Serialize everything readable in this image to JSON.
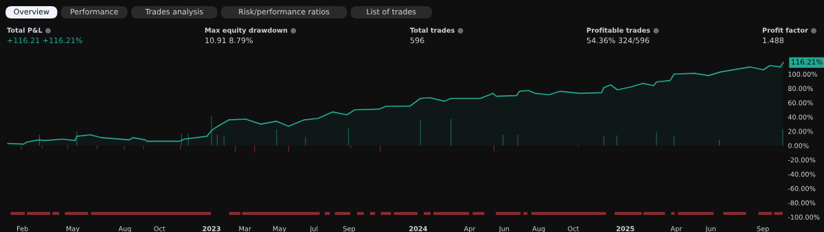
{
  "chart_data": [
    {
      "type": "other",
      "annotations": [
        "Overview",
        "Performance",
        "Trades analysis",
        "Risk/performance ratios",
        "List of trades",
        "Total P&L",
        "+116.21 +116.21%",
        "Max equity drawdown",
        "10.91 8.79%",
        "Total trades",
        "596",
        "Profitable trades",
        "54.36% 324/596",
        "Profit factor",
        "1.488"
      ]
    },
    {
      "type": "area",
      "series": [
        {
          "type": "area",
          "color": "#22ab94",
          "x": [
            "2022-01-06",
            "2022-02-03",
            "2022-02-09",
            "2022-03-02",
            "2022-03-12",
            "2022-04-13",
            "2022-05-05",
            "2022-05-08",
            "2022-06-01",
            "2022-06-21",
            "2022-08-09",
            "2022-08-15",
            "2022-09-06",
            "2022-09-09",
            "2022-11-05",
            "2022-11-14",
            "2022-12-24",
            "2023-01-01",
            "2023-01-08",
            "2023-02-01",
            "2023-03-02",
            "2023-03-29",
            "2023-04-26",
            "2023-05-17",
            "2023-06-14",
            "2023-07-08",
            "2023-08-03",
            "2023-08-28",
            "2023-09-11",
            "2023-10-24",
            "2023-11-05",
            "2023-12-17",
            "2024-01-05",
            "2024-01-22",
            "2024-02-16",
            "2024-02-28",
            "2024-04-20",
            "2024-05-12",
            "2024-05-18",
            "2024-06-23",
            "2024-06-28",
            "2024-07-14",
            "2024-07-26",
            "2024-08-19",
            "2024-09-08",
            "2024-10-12",
            "2024-11-20",
            "2024-11-24",
            "2024-12-06",
            "2024-12-18",
            "2025-01-11",
            "2025-02-01",
            "2025-02-20",
            "2025-02-25",
            "2025-03-21",
            "2025-03-28",
            "2025-05-04",
            "2025-05-28",
            "2025-06-18",
            "2025-08-09",
            "2025-09-02",
            "2025-09-13",
            "2025-10-02",
            "2025-10-07"
          ],
          "values": [
            3,
            2,
            5,
            8,
            7,
            9,
            7,
            13,
            15,
            11,
            8,
            11,
            8,
            6,
            6,
            9,
            13,
            21,
            25,
            36,
            37,
            30,
            34,
            27,
            36,
            38,
            47,
            43,
            50,
            51,
            55,
            55,
            66,
            67,
            62,
            66,
            66,
            73,
            69,
            70,
            76,
            77,
            73,
            71,
            76,
            73,
            74,
            81,
            85,
            78,
            82,
            87,
            84,
            89,
            91,
            100,
            101,
            98,
            103,
            110,
            106,
            112,
            110,
            116.21
          ]
        },
        {
          "type": "bar",
          "colors": [
            "#8c2a33",
            "#1f6f63",
            "#8c2a33",
            "#8c2a33",
            "#1f6f63",
            "#8c2a33",
            "#8c2a33",
            "#8c2a33",
            "#8c2a33",
            "#1f6f63",
            "#1f6f63",
            "#1f6f63",
            "#1f6f63",
            "#1f6f63",
            "#8c2a33",
            "#8c2a33",
            "#1f6f63",
            "#8c2a33",
            "#1f6f63",
            "#1f6f63",
            "#8c2a33",
            "#8c2a33",
            "#1f6f63",
            "#1f6f63",
            "#8c2a33",
            "#1f6f63",
            "#1f6f63",
            "#8c2a33",
            "#1f6f63",
            "#1f6f63",
            "#1f6f63",
            "#1f6f63",
            "#1f6f63",
            "#1f6f63"
          ],
          "x": [
            "2022-01-30",
            "2022-03-03",
            "2022-03-08",
            "2022-04-22",
            "2022-05-08",
            "2022-06-13",
            "2022-07-31",
            "2022-09-03",
            "2022-11-07",
            "2022-11-09",
            "2022-11-21",
            "2023-01-01",
            "2023-01-11",
            "2023-01-23",
            "2023-02-12",
            "2023-03-18",
            "2023-04-26",
            "2023-05-17",
            "2023-06-16",
            "2023-08-31",
            "2023-09-04",
            "2023-10-26",
            "2024-01-05",
            "2024-02-28",
            "2024-05-14",
            "2024-05-30",
            "2024-06-25",
            "2024-10-10",
            "2024-11-24",
            "2024-12-17",
            "2025-02-25",
            "2025-03-28",
            "2025-06-16",
            "2025-10-06"
          ],
          "values": [
            -5,
            15,
            -4,
            -5,
            19,
            -5,
            -6,
            -5,
            -6,
            17,
            16,
            41,
            15,
            13,
            -9,
            -10,
            23,
            -9,
            12,
            24,
            -4,
            -9,
            35,
            37,
            -8,
            15,
            15,
            -2,
            14,
            14,
            19,
            14,
            8,
            23
          ]
        },
        {
          "type": "line",
          "color": "#8c2a33",
          "x": [
            "2022-01-11",
            "2022-02-05",
            "2022-02-07",
            "2022-02-09",
            "2022-03-22",
            "2022-03-24",
            "2022-03-26",
            "2022-04-07",
            "2022-04-12",
            "2022-04-17",
            "2022-05-28",
            "2022-05-30",
            "2022-06-02",
            "2022-12-31",
            "2023-01-15",
            "2023-02-01",
            "2023-02-21",
            "2023-02-22",
            "2023-02-24",
            "2023-07-11",
            "2023-07-16",
            "2023-07-20",
            "2023-07-29",
            "2023-08-01",
            "2023-08-07",
            "2023-09-03",
            "2023-09-09",
            "2023-09-15",
            "2023-09-27",
            "2023-10-02",
            "2023-10-08",
            "2023-10-17",
            "2023-10-22",
            "2023-10-27",
            "2023-11-14",
            "2023-11-16",
            "2023-11-19",
            "2023-12-31",
            "2024-01-05",
            "2024-01-11",
            "2024-01-23",
            "2024-01-25",
            "2024-01-28",
            "2024-03-31",
            "2024-04-03",
            "2024-04-06",
            "2024-04-27",
            "2024-05-07",
            "2024-05-17",
            "2024-06-30",
            "2024-07-02",
            "2024-07-05",
            "2024-07-12",
            "2024-07-15",
            "2024-07-19",
            "2024-11-28",
            "2024-12-05",
            "2024-12-13",
            "2025-01-30",
            "2025-01-31",
            "2025-02-02",
            "2025-03-12",
            "2025-03-17",
            "2025-03-23",
            "2025-03-29",
            "2025-04-01",
            "2025-04-04",
            "2025-06-06",
            "2025-06-14",
            "2025-06-23",
            "2025-08-02",
            "2025-08-13",
            "2025-08-24",
            "2025-09-17",
            "2025-09-19",
            "2025-09-21",
            "2025-10-06"
          ],
          "values": [
            -95,
            -95,
            null,
            -95,
            -95,
            null,
            -95,
            -95,
            null,
            -95,
            -95,
            null,
            -95,
            -95,
            null,
            -95,
            -95,
            null,
            -95,
            -95,
            null,
            -95,
            -95,
            null,
            -95,
            -95,
            null,
            -95,
            -95,
            null,
            -95,
            -95,
            null,
            -95,
            -95,
            null,
            -95,
            -95,
            null,
            -95,
            -95,
            null,
            -95,
            -95,
            null,
            -95,
            -95,
            null,
            -95,
            -95,
            null,
            -95,
            -95,
            null,
            -95,
            -95,
            null,
            -95,
            -95,
            null,
            -95,
            -95,
            null,
            -95,
            -95,
            null,
            -95,
            -95,
            null,
            -95,
            -95,
            null,
            -95,
            -95,
            null,
            -95,
            -95
          ]
        }
      ],
      "xlim": [
        "2022-01-04",
        "2025-10-09"
      ],
      "xticks": [
        {
          "value": "2022-02-01",
          "label": "Feb"
        },
        {
          "value": "2022-05-01",
          "label": "May"
        },
        {
          "value": "2022-08-01",
          "label": "Aug"
        },
        {
          "value": "2022-10-01",
          "label": "Oct"
        },
        {
          "value": "2023-01-01",
          "label": "2023"
        },
        {
          "value": "2023-03-01",
          "label": "Mar"
        },
        {
          "value": "2023-05-01",
          "label": "May"
        },
        {
          "value": "2023-07-01",
          "label": "Jul"
        },
        {
          "value": "2023-09-01",
          "label": "Sep"
        },
        {
          "value": "2024-01-01",
          "label": "2024"
        },
        {
          "value": "2024-04-01",
          "label": "Apr"
        },
        {
          "value": "2024-06-01",
          "label": "Jun"
        },
        {
          "value": "2024-08-01",
          "label": "Aug"
        },
        {
          "value": "2024-10-01",
          "label": "Oct"
        },
        {
          "value": "2025-01-01",
          "label": "2025"
        },
        {
          "value": "2025-04-01",
          "label": "Apr"
        },
        {
          "value": "2025-06-01",
          "label": "Jun"
        },
        {
          "value": "2025-09-01",
          "label": "Sep"
        }
      ],
      "ylim": [
        -108,
        129
      ],
      "yticks": [
        {
          "value": 100,
          "label": "100.00%"
        },
        {
          "value": 80,
          "label": "80.00%"
        },
        {
          "value": 60,
          "label": "60.00%"
        },
        {
          "value": 40,
          "label": "40.00%"
        },
        {
          "value": 20,
          "label": "20.00%"
        },
        {
          "value": 0,
          "label": "0.00%"
        },
        {
          "value": -20,
          "label": "-20.00%"
        },
        {
          "value": -40,
          "label": "-40.00%"
        },
        {
          "value": -60,
          "label": "-60.00%"
        },
        {
          "value": -80,
          "label": "-80.00%"
        },
        {
          "value": -100,
          "label": "-100.00%"
        }
      ],
      "annotations": [
        {
          "text": "116.21%",
          "x": "2025-10-07",
          "y": 116.21
        }
      ],
      "grid": false
    }
  ]
}
